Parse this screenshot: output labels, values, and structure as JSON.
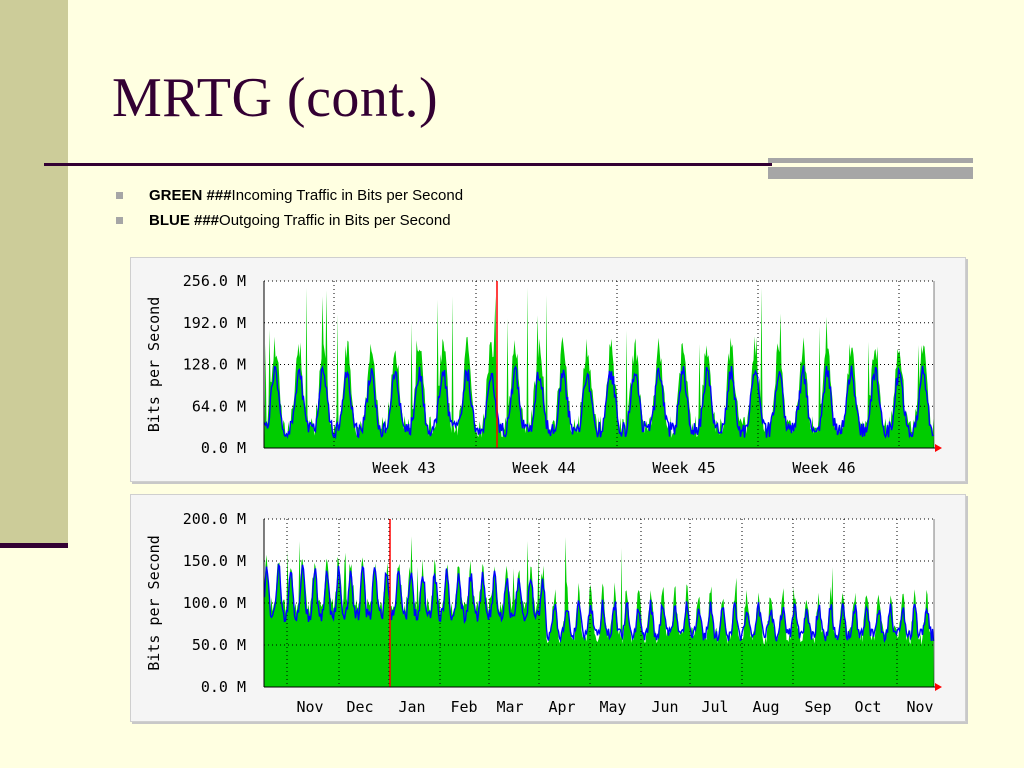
{
  "title": "MRTG (cont.)",
  "bullets": [
    {
      "bold": "GREEN ###",
      "text": "Incoming Traffic in Bits per Second"
    },
    {
      "bold": "BLUE ###",
      "text": "Outgoing Traffic in Bits per Second"
    }
  ],
  "colors": {
    "incoming": "#00cc00",
    "outgoing": "#0000ff",
    "marker": "#ff0000",
    "plot_bg": "#ffffff",
    "panel_bg": "#f5f5f5"
  },
  "chart_data": [
    {
      "type": "area",
      "ylabel": "Bits per Second",
      "ylim": [
        0,
        256
      ],
      "yticks": [
        "256.0 M",
        "192.0 M",
        "128.0 M",
        "64.0 M",
        "0.0 M"
      ],
      "xlabels": [
        "Week 43",
        "Week 44",
        "Week 45",
        "Week 46"
      ],
      "series": [
        {
          "name": "Incoming Traffic in Bits per Second",
          "summary": "daily peaks about 120-190 M, spikes to about 256 M, troughs about 30-40 M"
        },
        {
          "name": "Outgoing Traffic in Bits per Second",
          "summary": "daily peaks about 100-150 M, troughs about 25-45 M"
        }
      ],
      "grid": true
    },
    {
      "type": "area",
      "ylabel": "Bits per Second",
      "ylim": [
        0,
        200
      ],
      "yticks": [
        "200.0 M",
        "150.0 M",
        "100.0 M",
        "50.0 M",
        "0.0 M"
      ],
      "xlabels": [
        "Nov",
        "Dec",
        "Jan",
        "Feb",
        "Mar",
        "Apr",
        "May",
        "Jun",
        "Jul",
        "Aug",
        "Sep",
        "Oct",
        "Nov"
      ],
      "series": [
        {
          "name": "Incoming Traffic in Bits per Second",
          "summary": "about 110-160 M Nov through Mar, about 90-120 M after Apr, peaks to 200 M"
        },
        {
          "name": "Outgoing Traffic in Bits per Second",
          "summary": "about 100-140 M early, declining to about 70-90 M after May"
        }
      ],
      "grid": true
    }
  ]
}
